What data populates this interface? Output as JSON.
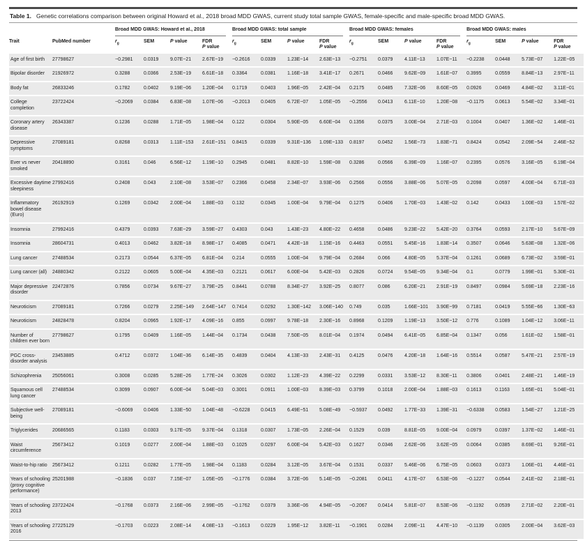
{
  "title": {
    "label": "Table 1.",
    "text": "Genetic correlations comparison between original Howard et al., 2018 broad MDD GWAS, current study total sample GWAS, female-specific and male-specific broad MDD GWAS."
  },
  "table": {
    "row_header_columns": [
      "Trait",
      "PubMed number"
    ],
    "groups": [
      {
        "label": "Broad MDD GWAS: Howard et al., 2018"
      },
      {
        "label": "Broad MDD GWAS: total sample"
      },
      {
        "label": "Broad MDD GWAS: females"
      },
      {
        "label": "Broad MDD GWAS: males"
      }
    ],
    "subcolumns": [
      "rg",
      "SEM",
      "P value",
      "FDR P value"
    ],
    "rows": [
      {
        "trait": "Age of first birth",
        "pubmed": "27798627",
        "values": [
          "−0.2981",
          "0.0319",
          "9.07E−21",
          "2.67E−19",
          "−0.2616",
          "0.0339",
          "1.23E−14",
          "2.63E−13",
          "−0.2751",
          "0.0379",
          "4.11E−13",
          "1.07E−11",
          "−0.2238",
          "0.0448",
          "5.73E−07",
          "1.22E−05"
        ]
      },
      {
        "trait": "Bipolar disorder",
        "pubmed": "21926972",
        "values": [
          "0.3288",
          "0.0366",
          "2.53E−19",
          "6.61E−18",
          "0.3364",
          "0.0381",
          "1.16E−18",
          "3.41E−17",
          "0.2671",
          "0.0466",
          "9.62E−09",
          "1.61E−07",
          "0.3995",
          "0.0559",
          "8.84E−13",
          "2.97E−11"
        ]
      },
      {
        "trait": "Body fat",
        "pubmed": "26833246",
        "values": [
          "0.1782",
          "0.0402",
          "9.19E−06",
          "1.20E−04",
          "0.1719",
          "0.0403",
          "1.96E−05",
          "2.42E−04",
          "0.2175",
          "0.0485",
          "7.32E−06",
          "8.60E−05",
          "0.0926",
          "0.0469",
          "4.84E−02",
          "3.11E−01"
        ]
      },
      {
        "trait": "College completion",
        "pubmed": "23722424",
        "values": [
          "−0.2069",
          "0.0384",
          "6.83E−08",
          "1.07E−06",
          "−0.2013",
          "0.0405",
          "6.72E−07",
          "1.05E−05",
          "−0.2556",
          "0.0413",
          "6.11E−10",
          "1.20E−08",
          "−0.1175",
          "0.0613",
          "5.54E−02",
          "3.34E−01"
        ]
      },
      {
        "trait": "Coronary artery disease",
        "pubmed": "26343387",
        "values": [
          "0.1236",
          "0.0288",
          "1.71E−05",
          "1.98E−04",
          "0.122",
          "0.0304",
          "5.90E−05",
          "6.60E−04",
          "0.1356",
          "0.0375",
          "3.00E−04",
          "2.71E−03",
          "0.1004",
          "0.0407",
          "1.36E−02",
          "1.46E−01"
        ]
      },
      {
        "trait": "Depressive symptoms",
        "pubmed": "27089181",
        "values": [
          "0.8268",
          "0.0313",
          "1.11E−153",
          "2.61E−151",
          "0.8415",
          "0.0339",
          "9.31E−136",
          "1.09E−133",
          "0.8197",
          "0.0452",
          "1.56E−73",
          "1.83E−71",
          "0.8424",
          "0.0542",
          "2.09E−54",
          "2.46E−52"
        ]
      },
      {
        "trait": "Ever vs never smoked",
        "pubmed": "20418890",
        "values": [
          "0.3161",
          "0.046",
          "6.56E−12",
          "1.19E−10",
          "0.2945",
          "0.0481",
          "8.82E−10",
          "1.59E−08",
          "0.3286",
          "0.0566",
          "6.39E−09",
          "1.16E−07",
          "0.2395",
          "0.0576",
          "3.16E−05",
          "6.19E−04"
        ]
      },
      {
        "trait": "Excessive daytime sleepiness",
        "pubmed": "27992416",
        "values": [
          "0.2408",
          "0.043",
          "2.10E−08",
          "3.53E−07",
          "0.2366",
          "0.0458",
          "2.34E−07",
          "3.93E−06",
          "0.2566",
          "0.0556",
          "3.88E−06",
          "5.07E−05",
          "0.2098",
          "0.0597",
          "4.00E−04",
          "6.71E−03"
        ]
      },
      {
        "trait": "Inflammatory bowel disease (Euro)",
        "pubmed": "26192919",
        "values": [
          "0.1269",
          "0.0342",
          "2.00E−04",
          "1.88E−03",
          "0.132",
          "0.0345",
          "1.00E−04",
          "9.79E−04",
          "0.1275",
          "0.0406",
          "1.70E−03",
          "1.43E−02",
          "0.142",
          "0.0433",
          "1.00E−03",
          "1.57E−02"
        ]
      },
      {
        "trait": "Insomnia",
        "pubmed": "27992416",
        "values": [
          "0.4379",
          "0.0393",
          "7.63E−29",
          "3.59E−27",
          "0.4303",
          "0.043",
          "1.43E−23",
          "4.80E−22",
          "0.4658",
          "0.0486",
          "9.23E−22",
          "5.42E−20",
          "0.3764",
          "0.0593",
          "2.17E−10",
          "5.67E−09"
        ]
      },
      {
        "trait": "Insomnia",
        "pubmed": "28604731",
        "values": [
          "0.4013",
          "0.0462",
          "3.82E−18",
          "8.98E−17",
          "0.4085",
          "0.0471",
          "4.42E−18",
          "1.15E−16",
          "0.4463",
          "0.0551",
          "5.45E−16",
          "1.83E−14",
          "0.3507",
          "0.0646",
          "5.63E−08",
          "1.32E−06"
        ]
      },
      {
        "trait": "Lung cancer",
        "pubmed": "27488534",
        "values": [
          "0.2173",
          "0.0544",
          "6.37E−05",
          "6.81E−04",
          "0.214",
          "0.0555",
          "1.00E−04",
          "9.79E−04",
          "0.2684",
          "0.066",
          "4.80E−05",
          "5.37E−04",
          "0.1261",
          "0.0689",
          "6.73E−02",
          "3.59E−01"
        ]
      },
      {
        "trait": "Lung cancer (all)",
        "pubmed": "24880342",
        "values": [
          "0.2122",
          "0.0605",
          "5.00E−04",
          "4.35E−03",
          "0.2121",
          "0.0617",
          "6.00E−04",
          "5.42E−03",
          "0.2826",
          "0.0724",
          "9.54E−05",
          "9.34E−04",
          "0.1",
          "0.0779",
          "1.99E−01",
          "5.30E−01"
        ]
      },
      {
        "trait": "Major depressive disorder",
        "pubmed": "22472876",
        "values": [
          "0.7856",
          "0.0734",
          "9.67E−27",
          "3.79E−25",
          "0.8441",
          "0.0788",
          "8.34E−27",
          "3.92E−25",
          "0.8077",
          "0.086",
          "6.20E−21",
          "2.91E−19",
          "0.8497",
          "0.0984",
          "5.69E−18",
          "2.23E−16"
        ]
      },
      {
        "trait": "Neuroticism",
        "pubmed": "27089181",
        "values": [
          "0.7266",
          "0.0279",
          "2.25E−149",
          "2.64E−147",
          "0.7414",
          "0.0292",
          "1.30E−142",
          "3.06E−140",
          "0.749",
          "0.035",
          "1.66E−101",
          "3.90E−99",
          "0.7181",
          "0.0419",
          "5.55E−66",
          "1.30E−63"
        ]
      },
      {
        "trait": "Neuroticism",
        "pubmed": "24828478",
        "values": [
          "0.8204",
          "0.0965",
          "1.92E−17",
          "4.09E−16",
          "0.855",
          "0.0997",
          "9.78E−18",
          "2.30E−16",
          "0.8968",
          "0.1209",
          "1.19E−13",
          "3.50E−12",
          "0.776",
          "0.1089",
          "1.04E−12",
          "3.06E−11"
        ]
      },
      {
        "trait": "Number of children ever born",
        "pubmed": "27798627",
        "values": [
          "0.1795",
          "0.0409",
          "1.16E−05",
          "1.44E−04",
          "0.1734",
          "0.0438",
          "7.50E−05",
          "8.01E−04",
          "0.1974",
          "0.0494",
          "6.41E−05",
          "6.85E−04",
          "0.1347",
          "0.056",
          "1.61E−02",
          "1.58E−01"
        ]
      },
      {
        "trait": "PGC cross-disorder analysis",
        "pubmed": "23453885",
        "values": [
          "0.4712",
          "0.0372",
          "1.04E−36",
          "6.14E−35",
          "0.4839",
          "0.0404",
          "4.13E−33",
          "2.43E−31",
          "0.4125",
          "0.0476",
          "4.20E−18",
          "1.64E−16",
          "0.5514",
          "0.0587",
          "5.47E−21",
          "2.57E−19"
        ]
      },
      {
        "trait": "Schizophrenia",
        "pubmed": "25056061",
        "values": [
          "0.3008",
          "0.0285",
          "5.28E−26",
          "1.77E−24",
          "0.3026",
          "0.0302",
          "1.12E−23",
          "4.39E−22",
          "0.2299",
          "0.0331",
          "3.53E−12",
          "8.30E−11",
          "0.3806",
          "0.0401",
          "2.48E−21",
          "1.46E−19"
        ]
      },
      {
        "trait": "Squamous cell lung cancer",
        "pubmed": "27488534",
        "values": [
          "0.3099",
          "0.0907",
          "6.00E−04",
          "5.04E−03",
          "0.3001",
          "0.0911",
          "1.00E−03",
          "8.39E−03",
          "0.3799",
          "0.1018",
          "2.00E−04",
          "1.88E−03",
          "0.1613",
          "0.1163",
          "1.65E−01",
          "5.04E−01"
        ]
      },
      {
        "trait": "Subjective well-being",
        "pubmed": "27089181",
        "values": [
          "−0.6069",
          "0.0406",
          "1.33E−50",
          "1.04E−48",
          "−0.6228",
          "0.0415",
          "6.49E−51",
          "5.08E−49",
          "−0.5937",
          "0.0492",
          "1.77E−33",
          "1.39E−31",
          "−0.6338",
          "0.0583",
          "1.54E−27",
          "1.21E−25"
        ]
      },
      {
        "trait": "Triglycerides",
        "pubmed": "20686565",
        "values": [
          "0.1183",
          "0.0303",
          "9.17E−05",
          "9.37E−04",
          "0.1318",
          "0.0307",
          "1.73E−05",
          "2.26E−04",
          "0.1529",
          "0.039",
          "8.81E−05",
          "9.00E−04",
          "0.0979",
          "0.0397",
          "1.37E−02",
          "1.46E−01"
        ]
      },
      {
        "trait": "Waist circumference",
        "pubmed": "25673412",
        "values": [
          "0.1019",
          "0.0277",
          "2.00E−04",
          "1.88E−03",
          "0.1025",
          "0.0297",
          "6.00E−04",
          "5.42E−03",
          "0.1627",
          "0.0346",
          "2.62E−06",
          "3.62E−05",
          "0.0064",
          "0.0385",
          "8.69E−01",
          "9.26E−01"
        ]
      },
      {
        "trait": "Waist-to-hip ratio",
        "pubmed": "25673412",
        "values": [
          "0.1211",
          "0.0282",
          "1.77E−05",
          "1.98E−04",
          "0.1183",
          "0.0284",
          "3.12E−05",
          "3.67E−04",
          "0.1531",
          "0.0337",
          "5.46E−06",
          "6.75E−05",
          "0.0603",
          "0.0373",
          "1.06E−01",
          "4.46E−01"
        ]
      },
      {
        "trait": "Years of schooling (proxy cognitive performance)",
        "pubmed": "25201988",
        "values": [
          "−0.1836",
          "0.037",
          "7.15E−07",
          "1.05E−05",
          "−0.1776",
          "0.0384",
          "3.72E−06",
          "5.14E−05",
          "−0.2081",
          "0.0411",
          "4.17E−07",
          "6.53E−06",
          "−0.1227",
          "0.0544",
          "2.41E−02",
          "2.18E−01"
        ]
      },
      {
        "trait": "Years of schooling 2013",
        "pubmed": "23722424",
        "values": [
          "−0.1768",
          "0.0373",
          "2.16E−06",
          "2.99E−05",
          "−0.1762",
          "0.0379",
          "3.36E−06",
          "4.94E−05",
          "−0.2067",
          "0.0414",
          "5.81E−07",
          "8.53E−06",
          "−0.1192",
          "0.0539",
          "2.71E−02",
          "2.20E−01"
        ]
      },
      {
        "trait": "Years of schooling 2016",
        "pubmed": "27225129",
        "values": [
          "−0.1703",
          "0.0223",
          "2.08E−14",
          "4.08E−13",
          "−0.1613",
          "0.0229",
          "1.95E−12",
          "3.82E−11",
          "−0.1901",
          "0.0284",
          "2.09E−11",
          "4.47E−10",
          "−0.1139",
          "0.0305",
          "2.00E−04",
          "3.62E−03"
        ]
      }
    ]
  },
  "colors": {
    "row_band": "#eaeaea",
    "top_rule": "#4b4b4b",
    "thin_rule": "#9b9b9b",
    "text": "#1c1c1c"
  }
}
